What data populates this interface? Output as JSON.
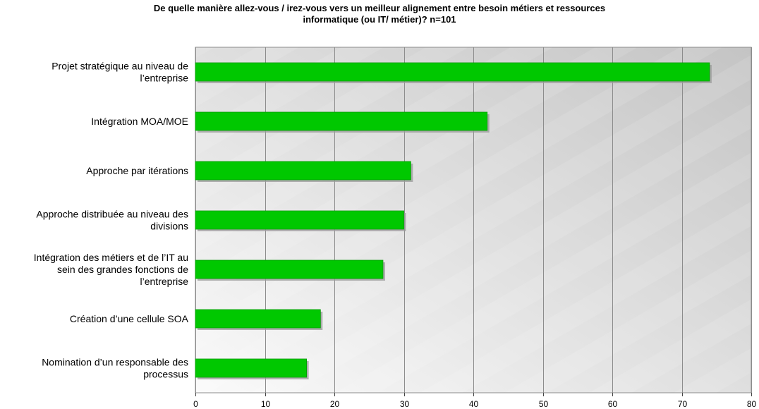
{
  "chart_data": {
    "type": "bar",
    "orientation": "horizontal",
    "title_lines": [
      "De quelle manière allez-vous / irez-vous vers un meilleur alignement entre besoin métiers et ressources",
      "informatique (ou IT/ métier)? n=101"
    ],
    "categories": [
      [
        "Projet stratégique au niveau de",
        "l’entreprise"
      ],
      [
        "Intégration MOA/MOE"
      ],
      [
        "Approche par itérations"
      ],
      [
        "Approche distribuée au niveau des",
        "divisions"
      ],
      [
        "Intégration des métiers et de l’IT au",
        "sein des grandes fonctions de",
        "l’entreprise"
      ],
      [
        "Création d’une cellule SOA"
      ],
      [
        "Nomination d’un responsable des",
        "processus"
      ]
    ],
    "values": [
      74,
      42,
      31,
      30,
      27,
      18,
      16
    ],
    "xlim": [
      0,
      80
    ],
    "xticks": [
      0,
      10,
      20,
      30,
      40,
      50,
      60,
      70,
      80
    ],
    "grid": true,
    "legend": "none",
    "colors": {
      "bar": "#00c800",
      "bar_edge": "#009a00",
      "bar_shadow": "#9a9a9a",
      "grid": "#8c8c8c",
      "plot_bg_light": "#fafafa",
      "plot_bg_dark": "#c4c4c4"
    }
  }
}
